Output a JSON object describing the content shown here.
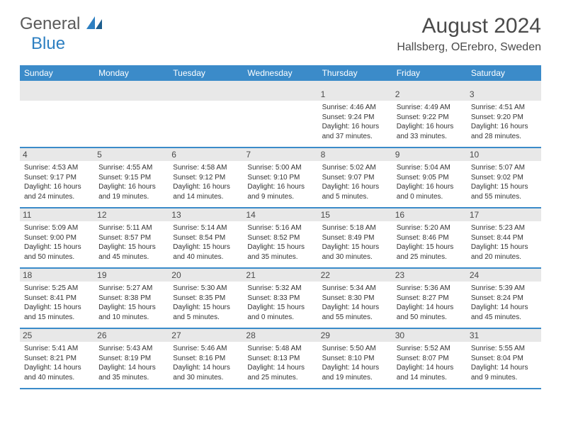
{
  "logo": {
    "text1": "General",
    "text2": "Blue"
  },
  "title": "August 2024",
  "location": "Hallsberg, OErebro, Sweden",
  "colors": {
    "header_bg": "#3b8bc9",
    "grey_bg": "#e8e8e8",
    "text": "#4a4a4a",
    "logo_grey": "#5a5a5a",
    "logo_blue": "#2d7fc1"
  },
  "daysOfWeek": [
    "Sunday",
    "Monday",
    "Tuesday",
    "Wednesday",
    "Thursday",
    "Friday",
    "Saturday"
  ],
  "weeks": [
    [
      null,
      null,
      null,
      null,
      {
        "n": "1",
        "sr": "Sunrise: 4:46 AM",
        "ss": "Sunset: 9:24 PM",
        "d1": "Daylight: 16 hours",
        "d2": "and 37 minutes."
      },
      {
        "n": "2",
        "sr": "Sunrise: 4:49 AM",
        "ss": "Sunset: 9:22 PM",
        "d1": "Daylight: 16 hours",
        "d2": "and 33 minutes."
      },
      {
        "n": "3",
        "sr": "Sunrise: 4:51 AM",
        "ss": "Sunset: 9:20 PM",
        "d1": "Daylight: 16 hours",
        "d2": "and 28 minutes."
      }
    ],
    [
      {
        "n": "4",
        "sr": "Sunrise: 4:53 AM",
        "ss": "Sunset: 9:17 PM",
        "d1": "Daylight: 16 hours",
        "d2": "and 24 minutes."
      },
      {
        "n": "5",
        "sr": "Sunrise: 4:55 AM",
        "ss": "Sunset: 9:15 PM",
        "d1": "Daylight: 16 hours",
        "d2": "and 19 minutes."
      },
      {
        "n": "6",
        "sr": "Sunrise: 4:58 AM",
        "ss": "Sunset: 9:12 PM",
        "d1": "Daylight: 16 hours",
        "d2": "and 14 minutes."
      },
      {
        "n": "7",
        "sr": "Sunrise: 5:00 AM",
        "ss": "Sunset: 9:10 PM",
        "d1": "Daylight: 16 hours",
        "d2": "and 9 minutes."
      },
      {
        "n": "8",
        "sr": "Sunrise: 5:02 AM",
        "ss": "Sunset: 9:07 PM",
        "d1": "Daylight: 16 hours",
        "d2": "and 5 minutes."
      },
      {
        "n": "9",
        "sr": "Sunrise: 5:04 AM",
        "ss": "Sunset: 9:05 PM",
        "d1": "Daylight: 16 hours",
        "d2": "and 0 minutes."
      },
      {
        "n": "10",
        "sr": "Sunrise: 5:07 AM",
        "ss": "Sunset: 9:02 PM",
        "d1": "Daylight: 15 hours",
        "d2": "and 55 minutes."
      }
    ],
    [
      {
        "n": "11",
        "sr": "Sunrise: 5:09 AM",
        "ss": "Sunset: 9:00 PM",
        "d1": "Daylight: 15 hours",
        "d2": "and 50 minutes."
      },
      {
        "n": "12",
        "sr": "Sunrise: 5:11 AM",
        "ss": "Sunset: 8:57 PM",
        "d1": "Daylight: 15 hours",
        "d2": "and 45 minutes."
      },
      {
        "n": "13",
        "sr": "Sunrise: 5:14 AM",
        "ss": "Sunset: 8:54 PM",
        "d1": "Daylight: 15 hours",
        "d2": "and 40 minutes."
      },
      {
        "n": "14",
        "sr": "Sunrise: 5:16 AM",
        "ss": "Sunset: 8:52 PM",
        "d1": "Daylight: 15 hours",
        "d2": "and 35 minutes."
      },
      {
        "n": "15",
        "sr": "Sunrise: 5:18 AM",
        "ss": "Sunset: 8:49 PM",
        "d1": "Daylight: 15 hours",
        "d2": "and 30 minutes."
      },
      {
        "n": "16",
        "sr": "Sunrise: 5:20 AM",
        "ss": "Sunset: 8:46 PM",
        "d1": "Daylight: 15 hours",
        "d2": "and 25 minutes."
      },
      {
        "n": "17",
        "sr": "Sunrise: 5:23 AM",
        "ss": "Sunset: 8:44 PM",
        "d1": "Daylight: 15 hours",
        "d2": "and 20 minutes."
      }
    ],
    [
      {
        "n": "18",
        "sr": "Sunrise: 5:25 AM",
        "ss": "Sunset: 8:41 PM",
        "d1": "Daylight: 15 hours",
        "d2": "and 15 minutes."
      },
      {
        "n": "19",
        "sr": "Sunrise: 5:27 AM",
        "ss": "Sunset: 8:38 PM",
        "d1": "Daylight: 15 hours",
        "d2": "and 10 minutes."
      },
      {
        "n": "20",
        "sr": "Sunrise: 5:30 AM",
        "ss": "Sunset: 8:35 PM",
        "d1": "Daylight: 15 hours",
        "d2": "and 5 minutes."
      },
      {
        "n": "21",
        "sr": "Sunrise: 5:32 AM",
        "ss": "Sunset: 8:33 PM",
        "d1": "Daylight: 15 hours",
        "d2": "and 0 minutes."
      },
      {
        "n": "22",
        "sr": "Sunrise: 5:34 AM",
        "ss": "Sunset: 8:30 PM",
        "d1": "Daylight: 14 hours",
        "d2": "and 55 minutes."
      },
      {
        "n": "23",
        "sr": "Sunrise: 5:36 AM",
        "ss": "Sunset: 8:27 PM",
        "d1": "Daylight: 14 hours",
        "d2": "and 50 minutes."
      },
      {
        "n": "24",
        "sr": "Sunrise: 5:39 AM",
        "ss": "Sunset: 8:24 PM",
        "d1": "Daylight: 14 hours",
        "d2": "and 45 minutes."
      }
    ],
    [
      {
        "n": "25",
        "sr": "Sunrise: 5:41 AM",
        "ss": "Sunset: 8:21 PM",
        "d1": "Daylight: 14 hours",
        "d2": "and 40 minutes."
      },
      {
        "n": "26",
        "sr": "Sunrise: 5:43 AM",
        "ss": "Sunset: 8:19 PM",
        "d1": "Daylight: 14 hours",
        "d2": "and 35 minutes."
      },
      {
        "n": "27",
        "sr": "Sunrise: 5:46 AM",
        "ss": "Sunset: 8:16 PM",
        "d1": "Daylight: 14 hours",
        "d2": "and 30 minutes."
      },
      {
        "n": "28",
        "sr": "Sunrise: 5:48 AM",
        "ss": "Sunset: 8:13 PM",
        "d1": "Daylight: 14 hours",
        "d2": "and 25 minutes."
      },
      {
        "n": "29",
        "sr": "Sunrise: 5:50 AM",
        "ss": "Sunset: 8:10 PM",
        "d1": "Daylight: 14 hours",
        "d2": "and 19 minutes."
      },
      {
        "n": "30",
        "sr": "Sunrise: 5:52 AM",
        "ss": "Sunset: 8:07 PM",
        "d1": "Daylight: 14 hours",
        "d2": "and 14 minutes."
      },
      {
        "n": "31",
        "sr": "Sunrise: 5:55 AM",
        "ss": "Sunset: 8:04 PM",
        "d1": "Daylight: 14 hours",
        "d2": "and 9 minutes."
      }
    ]
  ]
}
